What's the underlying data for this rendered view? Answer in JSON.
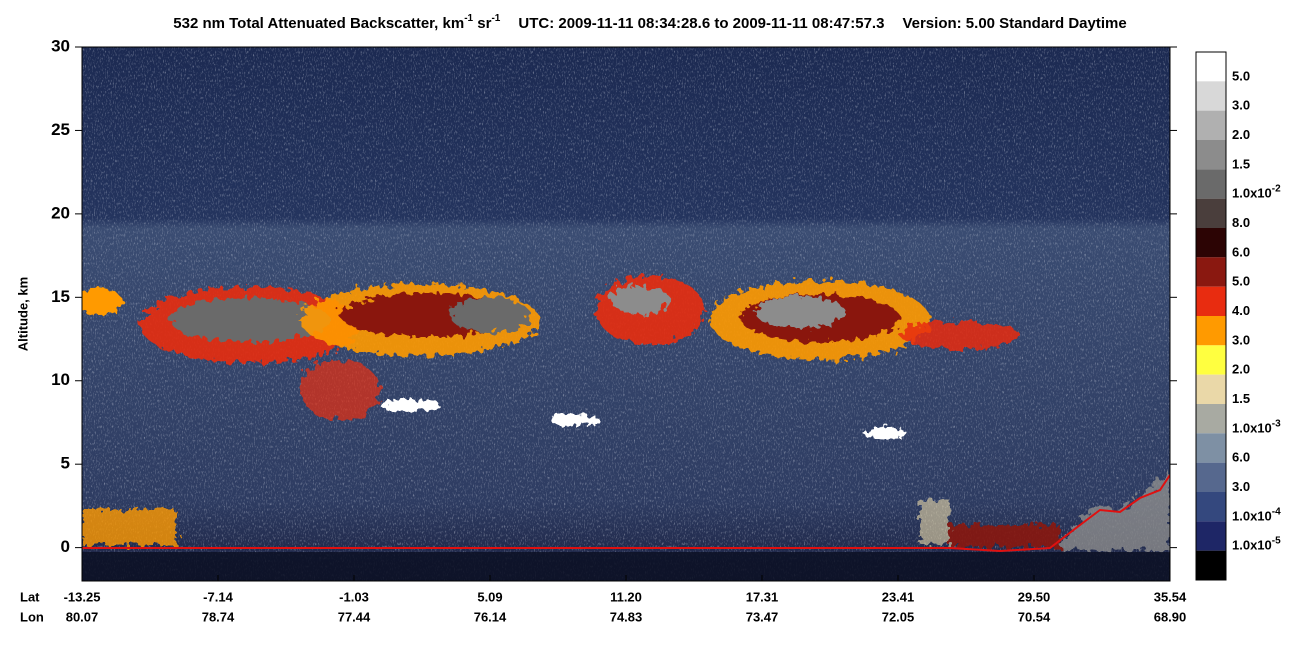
{
  "chart_data": {
    "type": "curtain",
    "title_parts": [
      "532 nm Total Attenuated Backscatter, km",
      "-1",
      " sr",
      "-1",
      "UTC:  2009-11-11 08:34:28.6  to  2009-11-11 08:47:57.3",
      "Version: 5.00  Standard  Daytime"
    ],
    "ylabel": "Altitude, km",
    "ylim": [
      -2,
      30
    ],
    "yticks": [
      0,
      5,
      10,
      15,
      20,
      25,
      30
    ],
    "x_rows": [
      {
        "name": "Lat",
        "labels": [
          "-13.25",
          "-7.14",
          "-1.03",
          "5.09",
          "11.20",
          "17.31",
          "23.41",
          "29.50",
          "35.54"
        ]
      },
      {
        "name": "Lon",
        "labels": [
          "80.07",
          "78.74",
          "77.44",
          "76.14",
          "74.83",
          "73.47",
          "72.05",
          "70.54",
          "68.90"
        ]
      }
    ],
    "colorbar": {
      "colors": [
        "#ffffff",
        "#d8d8d8",
        "#b0b0b0",
        "#8c8c8c",
        "#6a6a6a",
        "#4a3e3c",
        "#2c0404",
        "#8a1810",
        "#e82c10",
        "#ff9a00",
        "#ffff40",
        "#ead8a8",
        "#a8aaa2",
        "#7e90a4",
        "#56688e",
        "#34487e",
        "#1e2666",
        "#000000"
      ],
      "labels": [
        {
          "text": "5.0"
        },
        {
          "text": "3.0"
        },
        {
          "text": "2.0"
        },
        {
          "text": "1.5"
        },
        {
          "text": "1.0x10",
          "sup": "-2"
        },
        {
          "text": "8.0"
        },
        {
          "text": "6.0"
        },
        {
          "text": "5.0"
        },
        {
          "text": "4.0"
        },
        {
          "text": "3.0"
        },
        {
          "text": "2.0"
        },
        {
          "text": "1.5"
        },
        {
          "text": "1.0x10",
          "sup": "-3"
        },
        {
          "text": "6.0"
        },
        {
          "text": "3.0"
        },
        {
          "text": "1.0x10",
          "sup": "-4"
        },
        {
          "text": "1.0x10",
          "sup": "-5"
        }
      ]
    }
  }
}
